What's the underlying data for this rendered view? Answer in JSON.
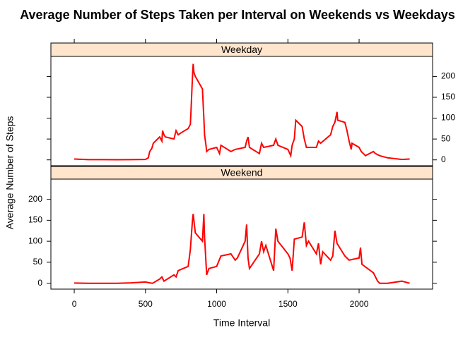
{
  "chart_data": {
    "type": "line",
    "title": "Average Number of Steps Taken per Interval on Weekends vs Weekdays",
    "xlabel": "Time Interval",
    "ylabel": "Average Number of Steps",
    "color": "#ff0000",
    "xlim": [
      -164,
      2516
    ],
    "xticks": [
      0,
      500,
      1000,
      1500,
      2000
    ],
    "ylim": [
      -14,
      248
    ],
    "yticks": [
      0,
      50,
      100,
      150,
      200
    ],
    "panels": [
      {
        "strip": "Weekday",
        "x": [
          0,
          100,
          200,
          300,
          400,
          500,
          520,
          530,
          545,
          555,
          600,
          615,
          620,
          630,
          640,
          700,
          715,
          730,
          750,
          800,
          815,
          820,
          830,
          835,
          840,
          850,
          900,
          910,
          915,
          925,
          930,
          945,
          1000,
          1020,
          1030,
          1100,
          1130,
          1200,
          1210,
          1220,
          1230,
          1300,
          1315,
          1330,
          1400,
          1415,
          1430,
          1500,
          1520,
          1530,
          1545,
          1555,
          1600,
          1615,
          1630,
          1700,
          1715,
          1730,
          1800,
          1815,
          1830,
          1845,
          1850,
          1900,
          1915,
          1930,
          1945,
          1950,
          2000,
          2015,
          2030,
          2045,
          2100,
          2115,
          2145,
          2200,
          2300,
          2355
        ],
        "values": [
          2,
          0.5,
          0.5,
          0.3,
          0.5,
          1,
          5,
          20,
          28,
          40,
          55,
          45,
          70,
          60,
          55,
          50,
          70,
          60,
          65,
          75,
          85,
          120,
          200,
          230,
          210,
          200,
          170,
          100,
          60,
          35,
          20,
          25,
          30,
          15,
          35,
          20,
          25,
          30,
          45,
          55,
          30,
          15,
          40,
          30,
          35,
          50,
          35,
          25,
          10,
          35,
          50,
          95,
          80,
          50,
          30,
          30,
          45,
          40,
          60,
          80,
          90,
          115,
          95,
          90,
          70,
          45,
          25,
          40,
          30,
          20,
          15,
          10,
          20,
          15,
          10,
          5,
          1,
          2
        ]
      },
      {
        "strip": "Weekend",
        "x": [
          0,
          100,
          300,
          400,
          500,
          530,
          550,
          600,
          615,
          630,
          700,
          715,
          730,
          800,
          815,
          830,
          835,
          850,
          900,
          910,
          915,
          930,
          945,
          1000,
          1030,
          1100,
          1130,
          1145,
          1200,
          1210,
          1220,
          1230,
          1300,
          1315,
          1330,
          1345,
          1400,
          1415,
          1430,
          1500,
          1515,
          1530,
          1545,
          1600,
          1615,
          1630,
          1645,
          1700,
          1715,
          1730,
          1745,
          1800,
          1815,
          1830,
          1845,
          1900,
          1930,
          2000,
          2010,
          2020,
          2100,
          2130,
          2145,
          2200,
          2300,
          2355
        ],
        "values": [
          0.5,
          0,
          0,
          1,
          3,
          1,
          0,
          10,
          15,
          5,
          20,
          15,
          30,
          40,
          80,
          150,
          165,
          120,
          100,
          165,
          110,
          20,
          35,
          40,
          65,
          70,
          55,
          60,
          100,
          140,
          60,
          35,
          70,
          100,
          75,
          90,
          30,
          130,
          100,
          70,
          60,
          30,
          105,
          110,
          145,
          90,
          100,
          70,
          95,
          45,
          75,
          55,
          65,
          125,
          95,
          65,
          55,
          60,
          85,
          45,
          25,
          5,
          0,
          0,
          5,
          0
        ]
      }
    ]
  }
}
